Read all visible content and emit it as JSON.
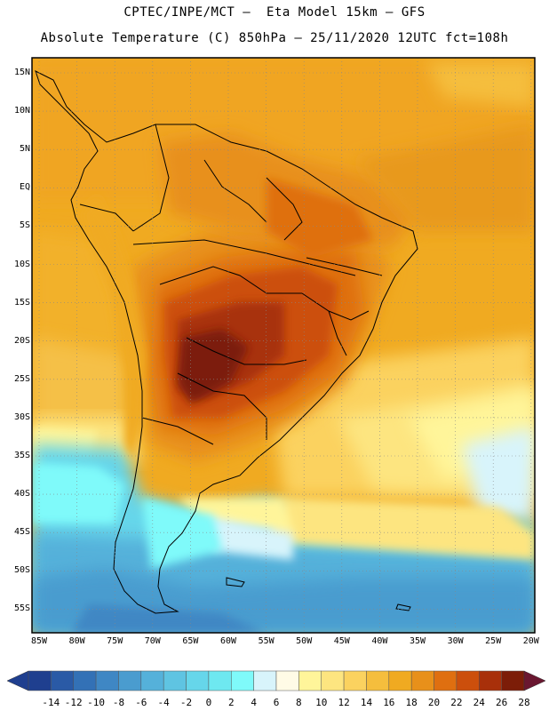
{
  "header": {
    "line1": "CPTEC/INPE/MCT –  Eta Model 15km – GFS",
    "line2": "Absolute Temperature (C) 850hPa – 25/11/2020 12UTC fct=108h"
  },
  "axes": {
    "lat_labels": [
      "15N",
      "10N",
      "5N",
      "EQ",
      "5S",
      "10S",
      "15S",
      "20S",
      "25S",
      "30S",
      "35S",
      "40S",
      "45S",
      "50S",
      "55S"
    ],
    "lon_labels": [
      "85W",
      "80W",
      "75W",
      "70W",
      "65W",
      "60W",
      "55W",
      "50W",
      "45W",
      "40W",
      "35W",
      "30W",
      "25W",
      "20W"
    ]
  },
  "colorbar": {
    "labels": [
      "-14",
      "-12",
      "-10",
      "-8",
      "-6",
      "-4",
      "-2",
      "0",
      "2",
      "4",
      "6",
      "8",
      "10",
      "12",
      "14",
      "16",
      "18",
      "20",
      "22",
      "24",
      "26",
      "28"
    ],
    "colors": [
      "#1f3f8f",
      "#2a5aa6",
      "#3371b6",
      "#3f87c4",
      "#4a9ccf",
      "#55b1da",
      "#5fc4e2",
      "#66d6ea",
      "#6ee8f0",
      "#7ffafa",
      "#d8f4fb",
      "#fffbe6",
      "#fff59a",
      "#fde580",
      "#fbd25f",
      "#f5be3d",
      "#f0aa21",
      "#e8901a",
      "#df6f10",
      "#cc4f0c",
      "#a8300a",
      "#7c1d08",
      "#6a1730"
    ]
  }
}
